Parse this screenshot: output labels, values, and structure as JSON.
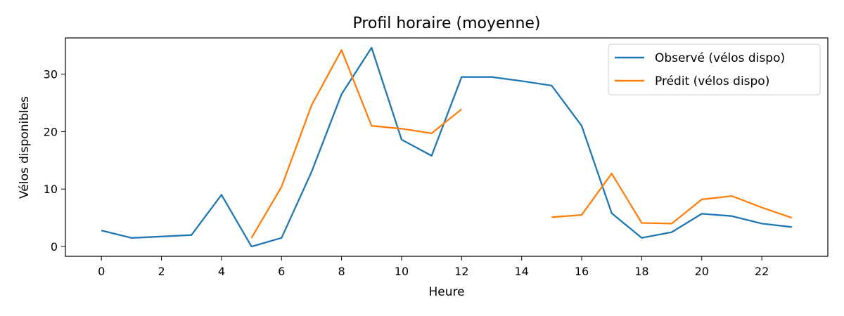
{
  "chart_data": {
    "type": "line",
    "title": "Profil horaire (moyenne)",
    "xlabel": "Heure",
    "ylabel": "Vélos disponibles",
    "xlim": [
      -1.2,
      24.2
    ],
    "ylim": [
      -1.7,
      36.3
    ],
    "xticks": [
      0,
      2,
      4,
      6,
      8,
      10,
      12,
      14,
      16,
      18,
      20,
      22
    ],
    "yticks": [
      0,
      10,
      20,
      30
    ],
    "grid": false,
    "legend_position": "top-right",
    "series": [
      {
        "name": "Observé (vélos dispo)",
        "color": "#1f77b4",
        "points": [
          [
            0,
            2.8
          ],
          [
            1,
            1.5
          ],
          [
            2,
            1.75
          ],
          [
            3,
            2.0
          ],
          [
            4,
            9.0
          ],
          [
            5,
            0.0
          ],
          [
            6,
            1.5
          ],
          [
            7,
            13.0
          ],
          [
            8,
            26.5
          ],
          [
            9,
            34.6
          ],
          [
            10,
            18.6
          ],
          [
            11,
            15.8
          ],
          [
            12,
            29.5
          ],
          [
            13,
            29.5
          ],
          [
            14,
            28.8
          ],
          [
            15,
            28.0
          ],
          [
            16,
            21.0
          ],
          [
            17,
            5.8
          ],
          [
            18,
            1.5
          ],
          [
            19,
            2.5
          ],
          [
            20,
            5.7
          ],
          [
            21,
            5.3
          ],
          [
            22,
            4.0
          ],
          [
            23,
            3.4
          ]
        ]
      },
      {
        "name": "Prédit (vélos dispo)",
        "color": "#ff7f0e",
        "points": [
          [
            5,
            1.5
          ],
          [
            6,
            10.4
          ],
          [
            7,
            24.6
          ],
          [
            8,
            34.2
          ],
          [
            9,
            21.0
          ],
          [
            10,
            20.5
          ],
          [
            11,
            19.7
          ],
          [
            12,
            23.9
          ],
          [
            13,
            null
          ],
          [
            14,
            null
          ],
          [
            15,
            5.1
          ],
          [
            16,
            5.5
          ],
          [
            17,
            12.7
          ],
          [
            18,
            4.1
          ],
          [
            19,
            4.0
          ],
          [
            20,
            8.2
          ],
          [
            21,
            8.8
          ],
          [
            22,
            6.8
          ],
          [
            23,
            5.0
          ]
        ]
      }
    ]
  }
}
